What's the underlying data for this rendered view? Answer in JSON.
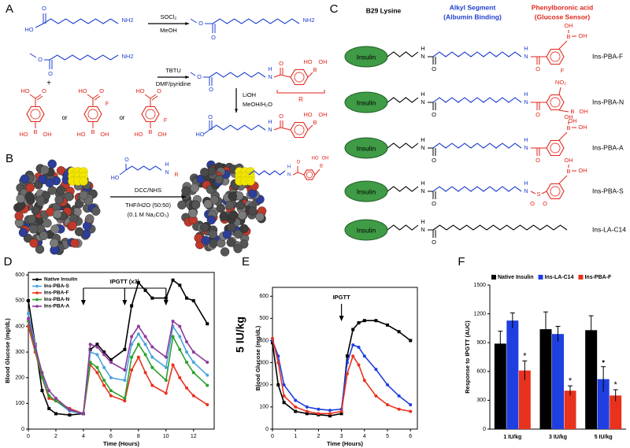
{
  "panel_labels": [
    "A",
    "B",
    "C",
    "D",
    "E",
    "F"
  ],
  "scheme_a": {
    "reagents": [
      "SOCl₂",
      "MeOH",
      "TBTU",
      "DMF/pyridine",
      "LiOH",
      "MeOH/H₂O"
    ],
    "symbols": [
      "+",
      "or",
      "or",
      "R"
    ],
    "molecules": [
      [
        "O",
        "HO",
        "NH2"
      ],
      [
        "O",
        "O",
        "NH2"
      ],
      [
        "O",
        "O",
        "NH2"
      ],
      [
        "HO",
        "O",
        "B",
        "HO",
        "OH"
      ],
      [
        "HO",
        "O",
        "F",
        "B",
        "HO",
        "OH"
      ],
      [
        "HO",
        "O",
        "F",
        "B",
        "HO",
        "OH"
      ],
      [
        "O",
        "O",
        "H",
        "N",
        "O",
        "B",
        "HO",
        "OH"
      ],
      [
        "HO",
        "O",
        "H",
        "N",
        "O",
        "B",
        "HO",
        "OH"
      ]
    ]
  },
  "scheme_b": {
    "reagents": [
      "DCC/NHS",
      "THF/H2O (50:50)",
      "(0.1 M Na₂CO₃)"
    ],
    "reagent_atoms": [
      "O",
      "HO",
      "H",
      "N",
      "R"
    ],
    "product_atoms": [
      "H",
      "N",
      "O",
      "B",
      "HO",
      "OH"
    ]
  },
  "panel_c": {
    "headers": [
      "B29 Lysine",
      "Alkyl Segment",
      "(Albumin Binding)",
      "Phenylboronic acid",
      "(Glucose Sensor)"
    ],
    "rows": [
      {
        "label": "Insulin",
        "name": "Ins-PBA-F",
        "atoms": [
          "H",
          "N",
          "O",
          "H",
          "N",
          "O",
          "B",
          "OH",
          "OH",
          "F"
        ]
      },
      {
        "label": "Insulin",
        "name": "Ins-PBA-N",
        "atoms": [
          "H",
          "N",
          "O",
          "H",
          "N",
          "O",
          "NO₂",
          "B",
          "OH",
          "OH"
        ]
      },
      {
        "label": "Insulin",
        "name": "Ins-PBA-A",
        "atoms": [
          "H",
          "N",
          "O",
          "H",
          "N",
          "O",
          "B",
          "OH",
          "OH"
        ]
      },
      {
        "label": "Insulin",
        "name": "Ins-PBA-S",
        "atoms": [
          "H",
          "N",
          "O",
          "H",
          "N",
          "S",
          "O",
          "O",
          "B",
          "OH",
          "OH"
        ]
      },
      {
        "label": "Insulin",
        "name": "Ins-LA-C14",
        "atoms": [
          "H",
          "N",
          "O"
        ]
      }
    ]
  },
  "chart_data": [
    {
      "type": "line",
      "ylabel": "Blood Glucose (mg/dL)",
      "xlabel": "Time (Hours)",
      "annotation": "IPGTT (x3)",
      "annotation_x": [
        4,
        7,
        10
      ],
      "legend": "upper left",
      "x": [
        0,
        0.5,
        1,
        1.5,
        2,
        3,
        4,
        4.5,
        5,
        5.5,
        6,
        7,
        7.5,
        8,
        8.5,
        9,
        10,
        10.5,
        11,
        11.5,
        12,
        13
      ],
      "xlim": [
        0,
        13.5
      ],
      "ylim": [
        0,
        610
      ],
      "xticks": [
        0,
        2,
        4,
        6,
        8,
        10,
        12
      ],
      "yticks": [
        0,
        100,
        200,
        300,
        400,
        500,
        600
      ],
      "series": [
        {
          "name": "Native Insulin",
          "color": "#000000",
          "values": [
            500,
            330,
            150,
            80,
            60,
            55,
            60,
            310,
            330,
            300,
            270,
            310,
            480,
            570,
            540,
            510,
            510,
            580,
            560,
            510,
            500,
            410
          ]
        },
        {
          "name": "Ins-PBA-S",
          "color": "#4aa3df",
          "values": [
            450,
            330,
            210,
            130,
            110,
            70,
            60,
            300,
            290,
            240,
            200,
            190,
            330,
            370,
            330,
            280,
            240,
            400,
            360,
            300,
            260,
            210
          ]
        },
        {
          "name": "Ins-PBA-F",
          "color": "#e8321e",
          "values": [
            400,
            300,
            200,
            120,
            110,
            80,
            60,
            250,
            220,
            170,
            130,
            110,
            230,
            280,
            220,
            170,
            140,
            250,
            200,
            160,
            130,
            95
          ]
        },
        {
          "name": "Ins-PBA-N",
          "color": "#2ca02c",
          "values": [
            420,
            310,
            200,
            130,
            110,
            75,
            60,
            260,
            240,
            190,
            150,
            120,
            280,
            330,
            290,
            240,
            190,
            360,
            310,
            260,
            220,
            170
          ]
        },
        {
          "name": "Ins-PBA-A",
          "color": "#8e3a9c",
          "values": [
            430,
            320,
            220,
            150,
            120,
            75,
            60,
            330,
            320,
            290,
            260,
            230,
            360,
            400,
            360,
            320,
            280,
            420,
            400,
            340,
            300,
            260
          ]
        }
      ]
    },
    {
      "type": "line",
      "side_label": "5 IU/kg",
      "ylabel": "Blood Glucose (mg/dL)",
      "xlabel": "Time (Hours)",
      "annotation": "IPGTT",
      "annotation_x": [
        3
      ],
      "x": [
        0,
        0.25,
        0.5,
        1,
        1.5,
        2,
        2.5,
        3,
        3.25,
        3.5,
        3.75,
        4,
        4.5,
        5,
        5.5,
        6
      ],
      "xlim": [
        0,
        6.3
      ],
      "ylim": [
        0,
        640
      ],
      "xticks": [
        0,
        1,
        2,
        3,
        4,
        5,
        6
      ],
      "yticks": [
        0,
        100,
        200,
        300,
        400,
        500,
        600
      ],
      "series": [
        {
          "color": "#000000",
          "values": [
            390,
            200,
            120,
            80,
            70,
            65,
            60,
            70,
            330,
            450,
            480,
            490,
            490,
            470,
            440,
            400
          ]
        },
        {
          "color": "#1f3fe0",
          "values": [
            400,
            330,
            200,
            130,
            100,
            90,
            85,
            90,
            300,
            380,
            370,
            330,
            270,
            200,
            150,
            110
          ]
        },
        {
          "color": "#e8321e",
          "values": [
            410,
            300,
            150,
            100,
            80,
            70,
            70,
            80,
            250,
            330,
            290,
            220,
            150,
            110,
            90,
            80
          ]
        }
      ]
    },
    {
      "type": "bar",
      "ylabel": "Response to IPGTT (AUC)",
      "legend": "top",
      "categories": [
        "1 IU/kg",
        "3 IU/kg",
        "5 IU/kg"
      ],
      "ylim": [
        0,
        1500
      ],
      "yticks": [
        0,
        300,
        600,
        900,
        1200,
        1500
      ],
      "series": [
        {
          "name": "Native Insulin",
          "color": "#000000",
          "values": [
            890,
            1040,
            1030
          ],
          "errors": [
            130,
            180,
            150
          ],
          "markers": [
            null,
            null,
            null
          ]
        },
        {
          "name": "Ins-LA-C14",
          "color": "#1f3fe0",
          "values": [
            1130,
            990,
            520
          ],
          "errors": [
            80,
            80,
            130
          ],
          "markers": [
            null,
            null,
            "•"
          ]
        },
        {
          "name": "Ins-PBA-F",
          "color": "#e8321e",
          "values": [
            610,
            400,
            350
          ],
          "errors": [
            100,
            50,
            60
          ],
          "markers": [
            "*",
            "*",
            "*"
          ]
        }
      ]
    }
  ]
}
